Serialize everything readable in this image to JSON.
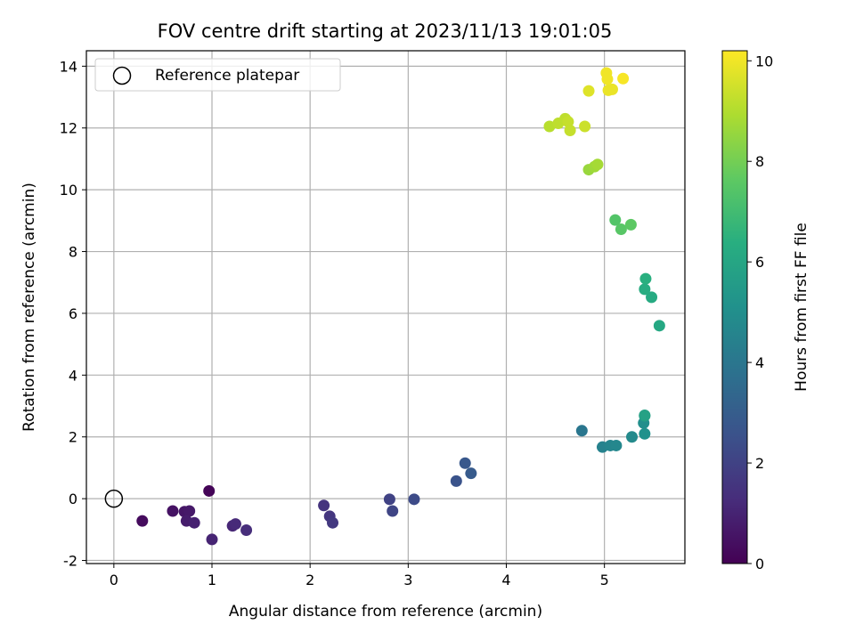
{
  "chart_data": {
    "type": "scatter",
    "title": "FOV centre drift starting at 2023/11/13 19:01:05",
    "xlabel": "Angular distance from reference (arcmin)",
    "ylabel": "Rotation from reference (arcmin)",
    "xlim": [
      -0.28,
      5.82
    ],
    "ylim": [
      -2.1,
      14.5
    ],
    "xticks": [
      0,
      1,
      2,
      3,
      4,
      5
    ],
    "yticks": [
      -2,
      0,
      2,
      4,
      6,
      8,
      10,
      12,
      14
    ],
    "grid": true,
    "legend": {
      "position": "top-left",
      "entries": [
        "Reference platepar"
      ]
    },
    "reference_point": {
      "x": 0,
      "y": 0
    },
    "colorbar": {
      "label": "Hours from first FF file",
      "range": [
        0,
        10.2
      ],
      "ticks": [
        0,
        2,
        4,
        6,
        8,
        10
      ],
      "colormap": "viridis"
    },
    "points": [
      {
        "x": 0.97,
        "y": 0.25,
        "c": 0.1
      },
      {
        "x": 0.29,
        "y": -0.72,
        "c": 0.3
      },
      {
        "x": 0.6,
        "y": -0.4,
        "c": 0.5
      },
      {
        "x": 0.72,
        "y": -0.42,
        "c": 0.6
      },
      {
        "x": 0.77,
        "y": -0.4,
        "c": 0.7
      },
      {
        "x": 0.74,
        "y": -0.72,
        "c": 0.8
      },
      {
        "x": 0.82,
        "y": -0.78,
        "c": 0.9
      },
      {
        "x": 1.0,
        "y": -1.32,
        "c": 1.0
      },
      {
        "x": 1.21,
        "y": -0.88,
        "c": 1.1
      },
      {
        "x": 1.24,
        "y": -0.82,
        "c": 1.2
      },
      {
        "x": 1.35,
        "y": -1.02,
        "c": 1.3
      },
      {
        "x": 2.14,
        "y": -0.22,
        "c": 1.5
      },
      {
        "x": 2.2,
        "y": -0.57,
        "c": 1.6
      },
      {
        "x": 2.23,
        "y": -0.78,
        "c": 1.7
      },
      {
        "x": 2.81,
        "y": -0.02,
        "c": 2.0
      },
      {
        "x": 2.84,
        "y": -0.4,
        "c": 2.1
      },
      {
        "x": 3.06,
        "y": -0.02,
        "c": 2.3
      },
      {
        "x": 3.49,
        "y": 0.57,
        "c": 2.6
      },
      {
        "x": 3.58,
        "y": 1.15,
        "c": 2.8
      },
      {
        "x": 3.64,
        "y": 0.82,
        "c": 2.9
      },
      {
        "x": 4.77,
        "y": 2.2,
        "c": 4.0
      },
      {
        "x": 4.98,
        "y": 1.67,
        "c": 4.5
      },
      {
        "x": 5.06,
        "y": 1.72,
        "c": 4.6
      },
      {
        "x": 5.12,
        "y": 1.72,
        "c": 4.7
      },
      {
        "x": 5.28,
        "y": 2.0,
        "c": 4.8
      },
      {
        "x": 5.4,
        "y": 2.45,
        "c": 5.0
      },
      {
        "x": 5.41,
        "y": 2.1,
        "c": 5.1
      },
      {
        "x": 5.41,
        "y": 2.68,
        "c": 5.6
      },
      {
        "x": 5.41,
        "y": 2.7,
        "c": 5.8
      },
      {
        "x": 5.56,
        "y": 5.6,
        "c": 6.1
      },
      {
        "x": 5.48,
        "y": 6.52,
        "c": 6.2
      },
      {
        "x": 5.41,
        "y": 6.78,
        "c": 6.3
      },
      {
        "x": 5.42,
        "y": 7.12,
        "c": 6.4
      },
      {
        "x": 5.11,
        "y": 9.02,
        "c": 7.4
      },
      {
        "x": 5.17,
        "y": 8.72,
        "c": 7.5
      },
      {
        "x": 5.27,
        "y": 8.87,
        "c": 7.6
      },
      {
        "x": 4.84,
        "y": 10.65,
        "c": 8.6
      },
      {
        "x": 4.9,
        "y": 10.75,
        "c": 8.7
      },
      {
        "x": 4.93,
        "y": 10.82,
        "c": 8.8
      },
      {
        "x": 4.44,
        "y": 12.05,
        "c": 9.1
      },
      {
        "x": 4.53,
        "y": 12.15,
        "c": 9.2
      },
      {
        "x": 4.6,
        "y": 12.3,
        "c": 9.2
      },
      {
        "x": 4.63,
        "y": 12.2,
        "c": 9.3
      },
      {
        "x": 4.65,
        "y": 11.92,
        "c": 9.3
      },
      {
        "x": 4.8,
        "y": 12.05,
        "c": 9.4
      },
      {
        "x": 4.84,
        "y": 13.2,
        "c": 9.7
      },
      {
        "x": 5.02,
        "y": 13.78,
        "c": 10.0
      },
      {
        "x": 5.03,
        "y": 13.58,
        "c": 10.0
      },
      {
        "x": 5.04,
        "y": 13.22,
        "c": 9.9
      },
      {
        "x": 5.08,
        "y": 13.25,
        "c": 9.9
      },
      {
        "x": 5.19,
        "y": 13.6,
        "c": 10.1
      }
    ]
  }
}
